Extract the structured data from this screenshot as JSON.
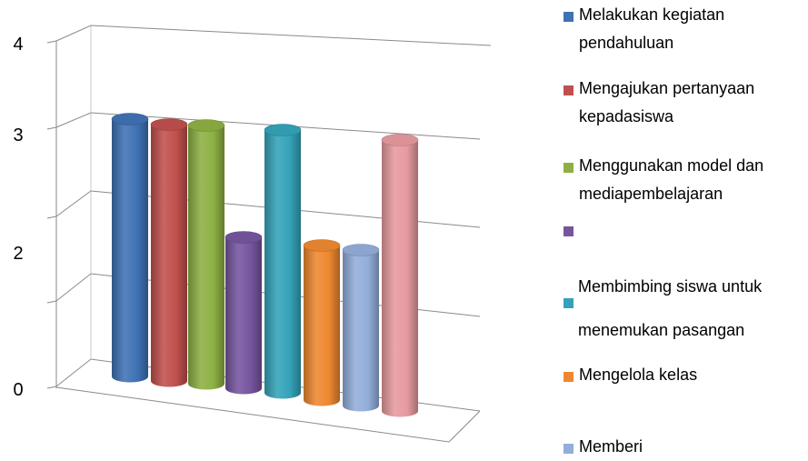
{
  "chart_data": {
    "type": "bar",
    "variant": "3d-cylinder",
    "title": "",
    "xlabel": "",
    "ylabel": "",
    "ylim": [
      0,
      4
    ],
    "y_tick_labels": [
      "0",
      "2",
      "3",
      "4"
    ],
    "grid": true,
    "legend_placement": "right",
    "series": [
      {
        "name": "Melakukan kegiatan pendahuluan",
        "legend_lines": [
          "Melakukan kegiatan",
          "pendahuluan"
        ],
        "value": 3.0,
        "color": "#3F72B4"
      },
      {
        "name": "Mengajukan pertanyaan kepadasiswa",
        "legend_lines": [
          "Mengajukan pertanyaan",
          "kepadasiswa"
        ],
        "value": 3.0,
        "color": "#C0504D"
      },
      {
        "name": "Menggunakan model dan mediapembelajaran",
        "legend_lines": [
          "Menggunakan model dan",
          "mediapembelajaran"
        ],
        "value": 3.0,
        "color": "#8DB043"
      },
      {
        "name": "",
        "legend_lines": [],
        "value": 2.0,
        "color": "#7655A0"
      },
      {
        "name": "Membimbing siswa untuk menemukan pasangan",
        "legend_lines": [
          "Membimbing siswa untuk",
          "menemukan pasangan"
        ],
        "value": 3.0,
        "color": "#34A3B9"
      },
      {
        "name": "Mengelola kelas",
        "legend_lines": [
          "Mengelola kelas"
        ],
        "value": 2.0,
        "color": "#EE8830"
      },
      {
        "name": "Memberi",
        "legend_lines": [
          "Memberi"
        ],
        "value": 2.0,
        "color": "#93AEDA"
      },
      {
        "name": "",
        "legend_lines": [],
        "value": 3.0,
        "color": "#E69A9F"
      }
    ]
  }
}
